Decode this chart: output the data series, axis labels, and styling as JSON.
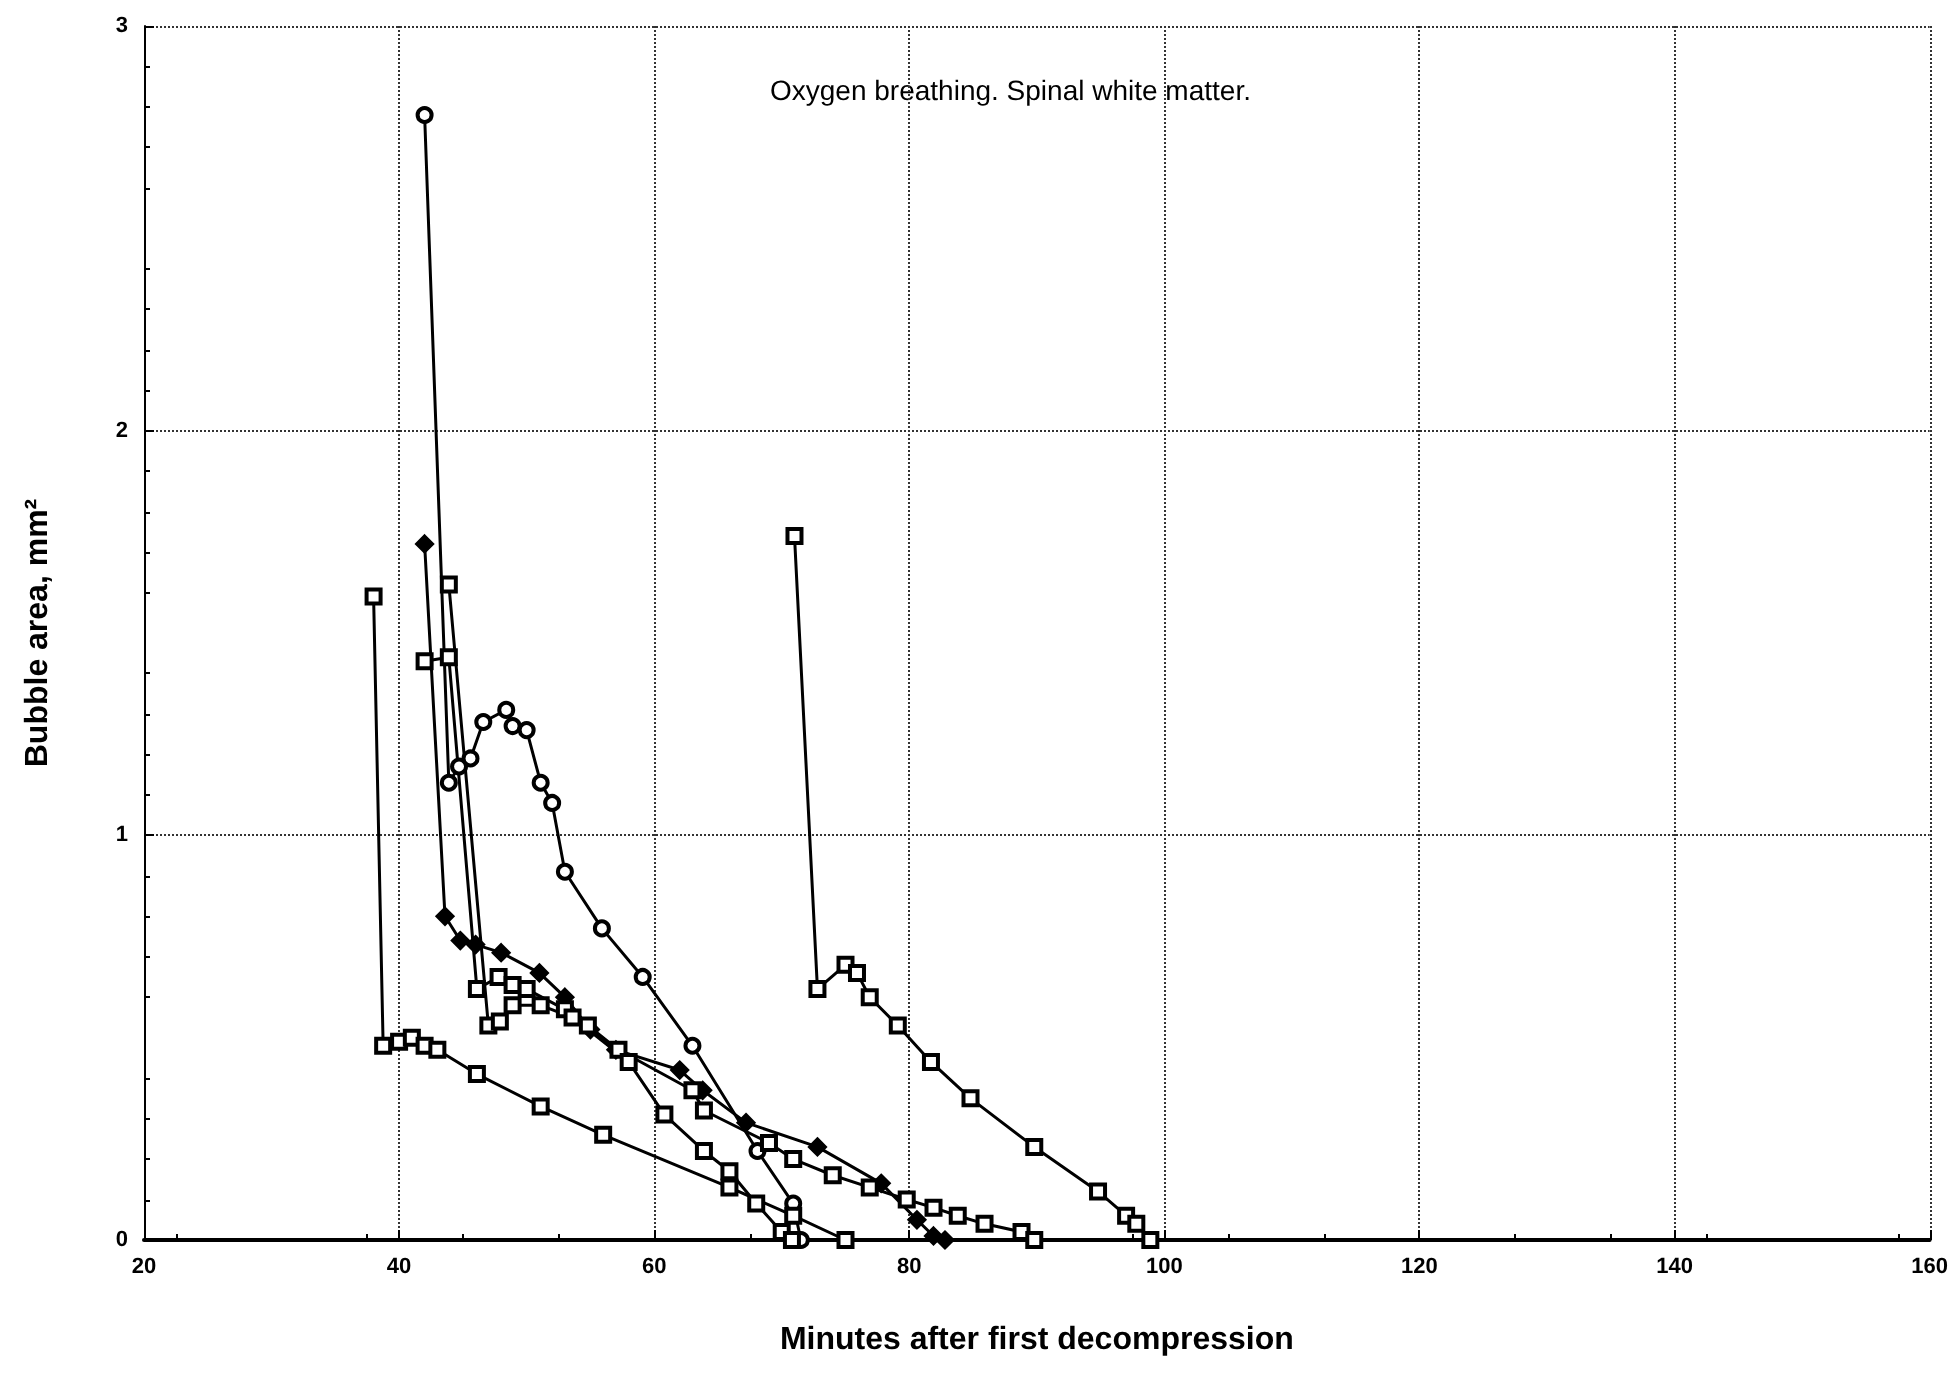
{
  "chart_data": {
    "type": "line",
    "xlabel": "Minutes after first decompression",
    "ylabel": "Bubble area, mm²",
    "annotations": [
      "Oxygen breathing. Spinal white matter."
    ],
    "xlim": [
      20,
      160
    ],
    "xticks": [
      20,
      40,
      60,
      80,
      100,
      120,
      140,
      160
    ],
    "ylim": [
      0,
      3
    ],
    "yticks": [
      0,
      1,
      2,
      3
    ],
    "grid": true,
    "line_style": "solid",
    "series": [
      {
        "color": "#000000",
        "marker": "circle",
        "x": [
          42,
          43.9,
          44.7,
          45.6,
          46.6,
          48.4,
          48.9,
          50,
          51.1,
          52,
          53,
          55.9,
          59.1,
          63,
          68.1,
          70.9,
          71.5
        ],
        "values": [
          2.78,
          1.13,
          1.17,
          1.19,
          1.28,
          1.31,
          1.27,
          1.26,
          1.13,
          1.08,
          0.91,
          0.77,
          0.65,
          0.48,
          0.22,
          0.09,
          0
        ]
      },
      {
        "color": "#000000",
        "marker": "diamond",
        "x": [
          42,
          43.6,
          44.8,
          46,
          48,
          51,
          53,
          55,
          57,
          62,
          63.8,
          67.2,
          72.8,
          77.8,
          80.6,
          81.9,
          82.8
        ],
        "values": [
          1.72,
          0.8,
          0.74,
          0.73,
          0.71,
          0.66,
          0.6,
          0.52,
          0.47,
          0.42,
          0.37,
          0.29,
          0.23,
          0.14,
          0.05,
          0.01,
          0
        ]
      },
      {
        "color": "#000000",
        "marker": "square",
        "x": [
          42,
          43.9,
          46.1,
          47.8,
          48.9,
          50,
          53,
          54.8,
          57.2,
          63,
          63.9,
          69,
          70.9,
          74,
          76.9,
          79.8,
          81.9,
          83.8,
          85.9,
          88.8,
          89.8
        ],
        "values": [
          1.43,
          1.44,
          0.62,
          0.65,
          0.63,
          0.62,
          0.57,
          0.53,
          0.47,
          0.37,
          0.32,
          0.24,
          0.2,
          0.16,
          0.13,
          0.1,
          0.08,
          0.06,
          0.04,
          0.02,
          0
        ]
      },
      {
        "color": "#000000",
        "marker": "square",
        "x": [
          43.9,
          47,
          47.9,
          48.9,
          51.1,
          53.6,
          58,
          60.8,
          63.9,
          65.9,
          68,
          70,
          70.8
        ],
        "values": [
          1.62,
          0.53,
          0.54,
          0.58,
          0.58,
          0.55,
          0.44,
          0.31,
          0.22,
          0.17,
          0.09,
          0.02,
          0
        ]
      },
      {
        "color": "#000000",
        "marker": "square",
        "x": [
          38,
          38.75,
          40,
          41,
          42,
          43,
          46.1,
          51.1,
          56,
          65.9,
          70.9,
          75
        ],
        "values": [
          1.59,
          0.48,
          0.49,
          0.5,
          0.48,
          0.47,
          0.41,
          0.33,
          0.26,
          0.13,
          0.06,
          0
        ]
      },
      {
        "color": "#000000",
        "marker": "square",
        "x": [
          71,
          72.8,
          75,
          75.9,
          76.9,
          79.1,
          81.7,
          84.8,
          89.8,
          94.8,
          97,
          97.8,
          98.9
        ],
        "values": [
          1.74,
          0.62,
          0.68,
          0.66,
          0.6,
          0.53,
          0.44,
          0.35,
          0.23,
          0.12,
          0.06,
          0.04,
          0
        ]
      }
    ]
  }
}
